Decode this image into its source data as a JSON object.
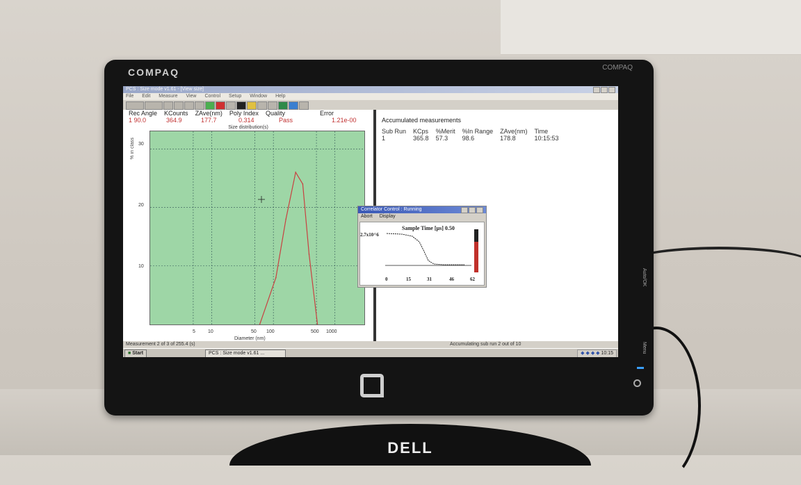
{
  "monitor": {
    "brand": "COMPAQ",
    "brand_right": "COMPAQ",
    "side_labels": [
      "Auto/OK",
      "Menu"
    ]
  },
  "stand_logo": "DELL",
  "app": {
    "title": "PCS : Size mode v1.61 - [View size]",
    "menu": [
      "File",
      "Edit",
      "Measure",
      "View",
      "Control",
      "Setup",
      "Window",
      "Help"
    ],
    "header_labels": [
      "Rec Angle",
      "KCounts",
      "ZAve(nm)",
      "Poly Index",
      "Quality",
      "Error"
    ],
    "header_values": [
      "1   90.0",
      "364.9",
      "177.7",
      "0.314",
      "Pass",
      "1.21e-00"
    ],
    "plot": {
      "title": "Size distribution(s)",
      "ylabel": "% in class",
      "xlabel": "Diameter (nm)",
      "yticks": [
        "30",
        "20",
        "10"
      ],
      "xticks": [
        "5",
        "10",
        "50",
        "100",
        "500",
        "1000"
      ]
    },
    "accumulated": {
      "title": "Accumulated measurements",
      "columns": [
        "Sub Run",
        "KCps",
        "%Merit",
        "%In Range",
        "ZAve(nm)",
        "Time"
      ],
      "row": [
        "1",
        "365.8",
        "57.3",
        "98.6",
        "178.8",
        "10:15:53"
      ]
    },
    "correlator": {
      "title": "Correlator Control : Running",
      "menu": [
        "Abort",
        "Display"
      ],
      "sample_time": "Sample Time [µs] 0.50",
      "ymax": "2.7x10^6",
      "xticks": [
        "0",
        "15",
        "31",
        "46",
        "62"
      ]
    },
    "status_left": "Measurement 2 of 3 of 255.4 (s)",
    "status_right": "Accumulating sub run 2 out of 10",
    "taskbar": {
      "start": "Start",
      "item": "PCS : Size mode v1.61 ...",
      "clock": "10:15"
    }
  },
  "chart_data": {
    "type": "line",
    "xlabel": "Diameter (nm)",
    "ylabel": "% in class",
    "title": "Size distribution(s)",
    "x_scale": "log",
    "xlim": [
      1,
      3000
    ],
    "ylim": [
      0,
      33
    ],
    "series": [
      {
        "values": [
          [
            60,
            0
          ],
          [
            110,
            8
          ],
          [
            160,
            18
          ],
          [
            230,
            26
          ],
          [
            300,
            24
          ],
          [
            380,
            12
          ],
          [
            520,
            0
          ]
        ]
      }
    ]
  },
  "colors": {
    "plot_bg": "#9ed6a6",
    "curve": "#c84040",
    "header_values": "#c03030",
    "correlator_bar": "#c0302a"
  }
}
